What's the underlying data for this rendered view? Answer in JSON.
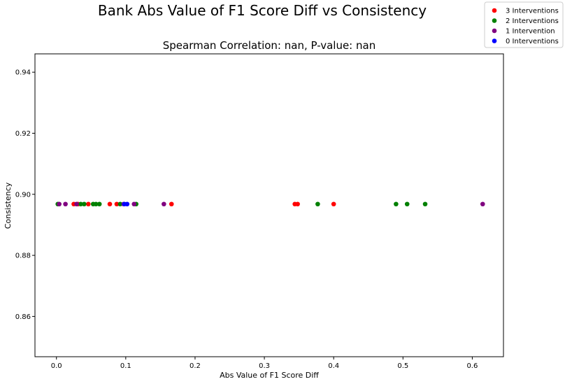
{
  "chart_data": {
    "type": "scatter",
    "suptitle": "Bank Abs Value of F1 Score Diff vs Consistency",
    "title": "Spearman Correlation: nan, P-value: nan",
    "xlabel": "Abs Value of F1 Score Diff",
    "ylabel": "Consistency",
    "xlim": [
      -0.031,
      0.645
    ],
    "ylim": [
      0.8468,
      0.946
    ],
    "xticks": [
      0.0,
      0.1,
      0.2,
      0.3,
      0.4,
      0.5,
      0.6
    ],
    "xtick_labels": [
      "0.0",
      "0.1",
      "0.2",
      "0.3",
      "0.4",
      "0.5",
      "0.6"
    ],
    "yticks": [
      0.86,
      0.88,
      0.9,
      0.92,
      0.94
    ],
    "ytick_labels": [
      "0.86",
      "0.88",
      "0.90",
      "0.92",
      "0.94"
    ],
    "legend_position": "top-right",
    "series": [
      {
        "name": "3 Interventions",
        "color": "#ff0000",
        "points": [
          [
            0.025,
            0.8968
          ],
          [
            0.031,
            0.8968
          ],
          [
            0.046,
            0.8968
          ],
          [
            0.077,
            0.8968
          ],
          [
            0.087,
            0.8968
          ],
          [
            0.166,
            0.8968
          ],
          [
            0.344,
            0.8968
          ],
          [
            0.348,
            0.8968
          ],
          [
            0.4,
            0.8968
          ]
        ]
      },
      {
        "name": "2 Interventions",
        "color": "#008000",
        "points": [
          [
            0.002,
            0.8968
          ],
          [
            0.035,
            0.8968
          ],
          [
            0.04,
            0.8968
          ],
          [
            0.053,
            0.8968
          ],
          [
            0.057,
            0.8968
          ],
          [
            0.062,
            0.8968
          ],
          [
            0.092,
            0.8968
          ],
          [
            0.115,
            0.8968
          ],
          [
            0.377,
            0.8968
          ],
          [
            0.49,
            0.8968
          ],
          [
            0.506,
            0.8968
          ],
          [
            0.532,
            0.8968
          ]
        ]
      },
      {
        "name": "1 Intervention",
        "color": "#800080",
        "points": [
          [
            0.004,
            0.8968
          ],
          [
            0.013,
            0.8968
          ],
          [
            0.029,
            0.8968
          ],
          [
            0.097,
            0.8968
          ],
          [
            0.112,
            0.8968
          ],
          [
            0.155,
            0.8968
          ],
          [
            0.615,
            0.8968
          ]
        ]
      },
      {
        "name": "0 Interventions",
        "color": "#0000ff",
        "points": [
          [
            0.098,
            0.8968
          ],
          [
            0.102,
            0.8968
          ]
        ]
      }
    ]
  }
}
